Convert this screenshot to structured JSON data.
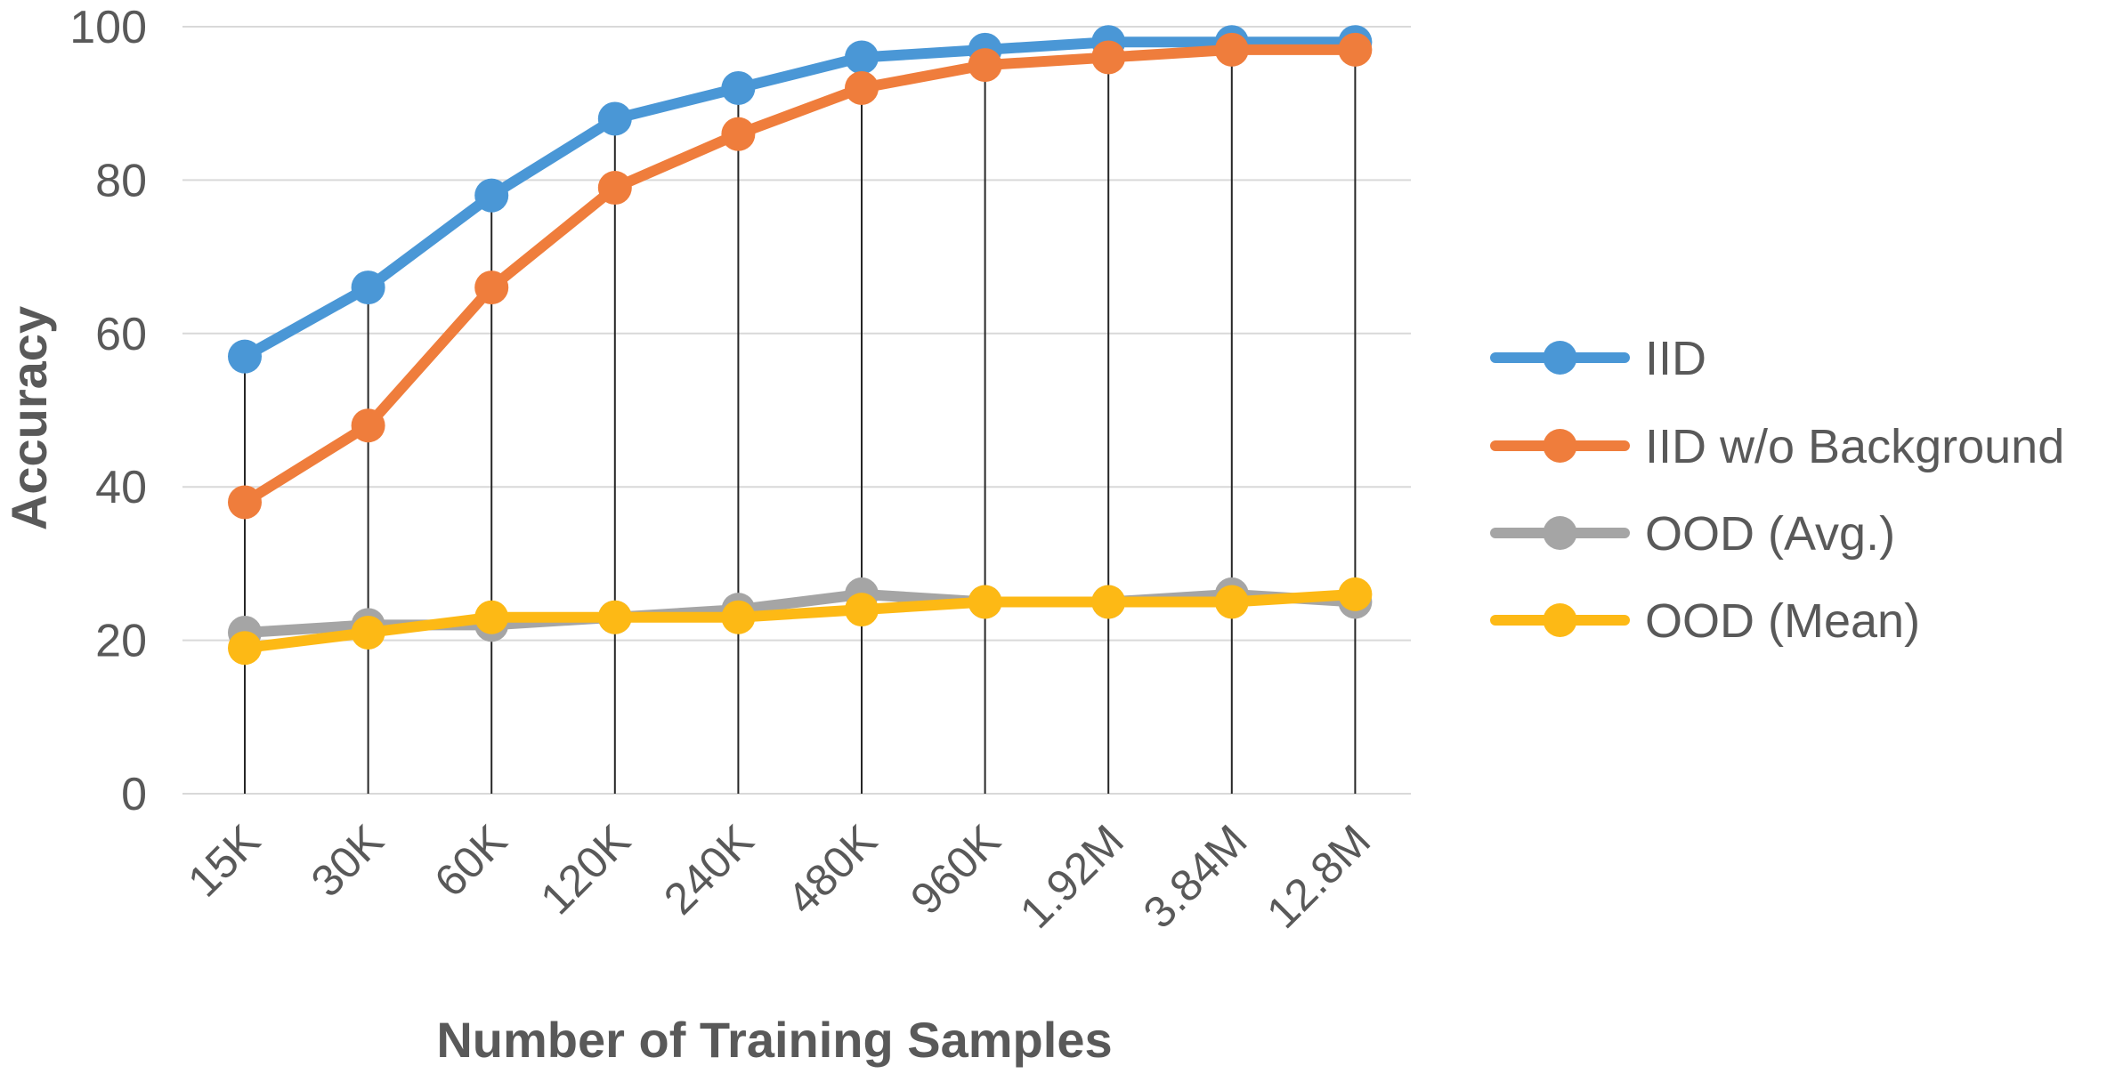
{
  "chart_data": {
    "type": "line",
    "title": "",
    "xlabel": "Number of Training Samples",
    "ylabel": "Accuracy",
    "categories": [
      "15K",
      "30K",
      "60K",
      "120K",
      "240K",
      "480K",
      "960K",
      "1.92M",
      "3.84M",
      "12.8M"
    ],
    "ylim": [
      0,
      100
    ],
    "yticks": [
      0,
      20,
      40,
      60,
      80,
      100
    ],
    "grid": true,
    "legend_position": "right",
    "series": [
      {
        "name": "IID",
        "color": "#4a97d6",
        "values": [
          57,
          66,
          78,
          88,
          92,
          96,
          97,
          98,
          98,
          98
        ]
      },
      {
        "name": "IID w/o Background",
        "color": "#ef7d3c",
        "values": [
          38,
          48,
          66,
          79,
          86,
          92,
          95,
          96,
          97,
          97
        ]
      },
      {
        "name": "OOD (Avg.)",
        "color": "#a5a5a5",
        "values": [
          21,
          22,
          22,
          23,
          24,
          26,
          25,
          25,
          26,
          25
        ]
      },
      {
        "name": "OOD (Mean)",
        "color": "#fdb915",
        "values": [
          19,
          21,
          23,
          23,
          23,
          24,
          25,
          25,
          25,
          26
        ]
      }
    ]
  }
}
